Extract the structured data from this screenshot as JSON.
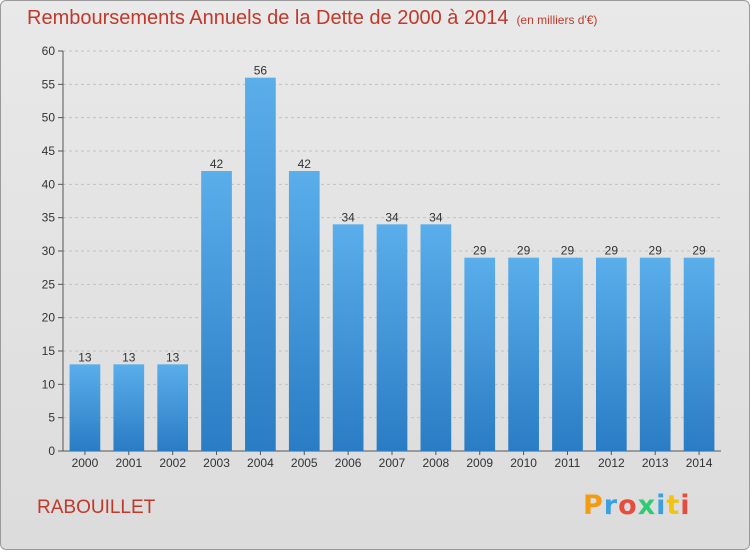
{
  "title": "Remboursements Annuels de la Dette de 2000 à 2014",
  "subtitle": "(en milliers d'€)",
  "commune": "RABOUILLET",
  "brand": "Proxiti",
  "chart_data": {
    "type": "bar",
    "categories": [
      "2000",
      "2001",
      "2002",
      "2003",
      "2004",
      "2005",
      "2006",
      "2007",
      "2008",
      "2009",
      "2010",
      "2011",
      "2012",
      "2013",
      "2014"
    ],
    "values": [
      13,
      13,
      13,
      42,
      56,
      42,
      34,
      34,
      34,
      29,
      29,
      29,
      29,
      29,
      29
    ],
    "title": "Remboursements Annuels de la Dette de 2000 à 2014",
    "subtitle": "(en milliers d'€)",
    "xlabel": "",
    "ylabel": "",
    "ylim": [
      0,
      60
    ],
    "yticks": [
      0,
      5,
      10,
      15,
      20,
      25,
      30,
      35,
      40,
      45,
      50,
      55,
      60
    ],
    "grid": true,
    "legend": "none",
    "bar_color": "#3a8fd6"
  }
}
